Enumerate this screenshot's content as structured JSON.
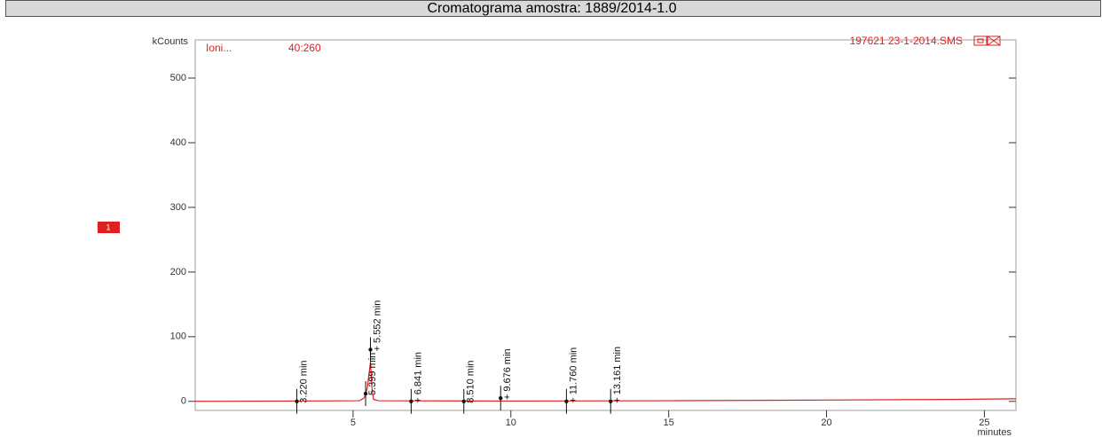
{
  "chart_data": {
    "type": "line",
    "title": "Cromatograma amostra: 1889/2014-1.0",
    "y_label": "kCounts",
    "x_label": "minutes",
    "mass_range": "40:260",
    "file": "197621 23-1-2014.SMS",
    "trace_badge": "1",
    "xlim": [
      0,
      26
    ],
    "ylim": [
      -14,
      559
    ],
    "xticks": [
      5,
      10,
      15,
      20,
      25
    ],
    "yticks": [
      0,
      100,
      200,
      300,
      400,
      500
    ],
    "series": [
      {
        "name": "Ioni...",
        "color": "#e02020",
        "x": [
          0,
          3.0,
          5.2,
          5.35,
          5.45,
          5.5,
          5.55,
          5.6,
          5.65,
          5.8,
          10,
          15,
          20,
          24,
          26
        ],
        "values": [
          0,
          0.5,
          1,
          5,
          20,
          40,
          60,
          20,
          3,
          1,
          0.5,
          1,
          2,
          3,
          4
        ]
      }
    ],
    "peaks": [
      {
        "label": "3.220 min",
        "x": 3.22,
        "y": 0
      },
      {
        "label": "5.399 min",
        "x": 5.399,
        "y": 12
      },
      {
        "label": "+ 5.552 min",
        "x": 5.552,
        "y": 80
      },
      {
        "label": "+ 6.841 min",
        "x": 6.841,
        "y": 0
      },
      {
        "label": "8.510 min",
        "x": 8.51,
        "y": 0
      },
      {
        "label": "+ 9.676 min",
        "x": 9.676,
        "y": 5
      },
      {
        "label": "+ 11.760 min",
        "x": 11.76,
        "y": 0
      },
      {
        "label": "+ 13.161 min",
        "x": 13.161,
        "y": 0
      }
    ]
  }
}
